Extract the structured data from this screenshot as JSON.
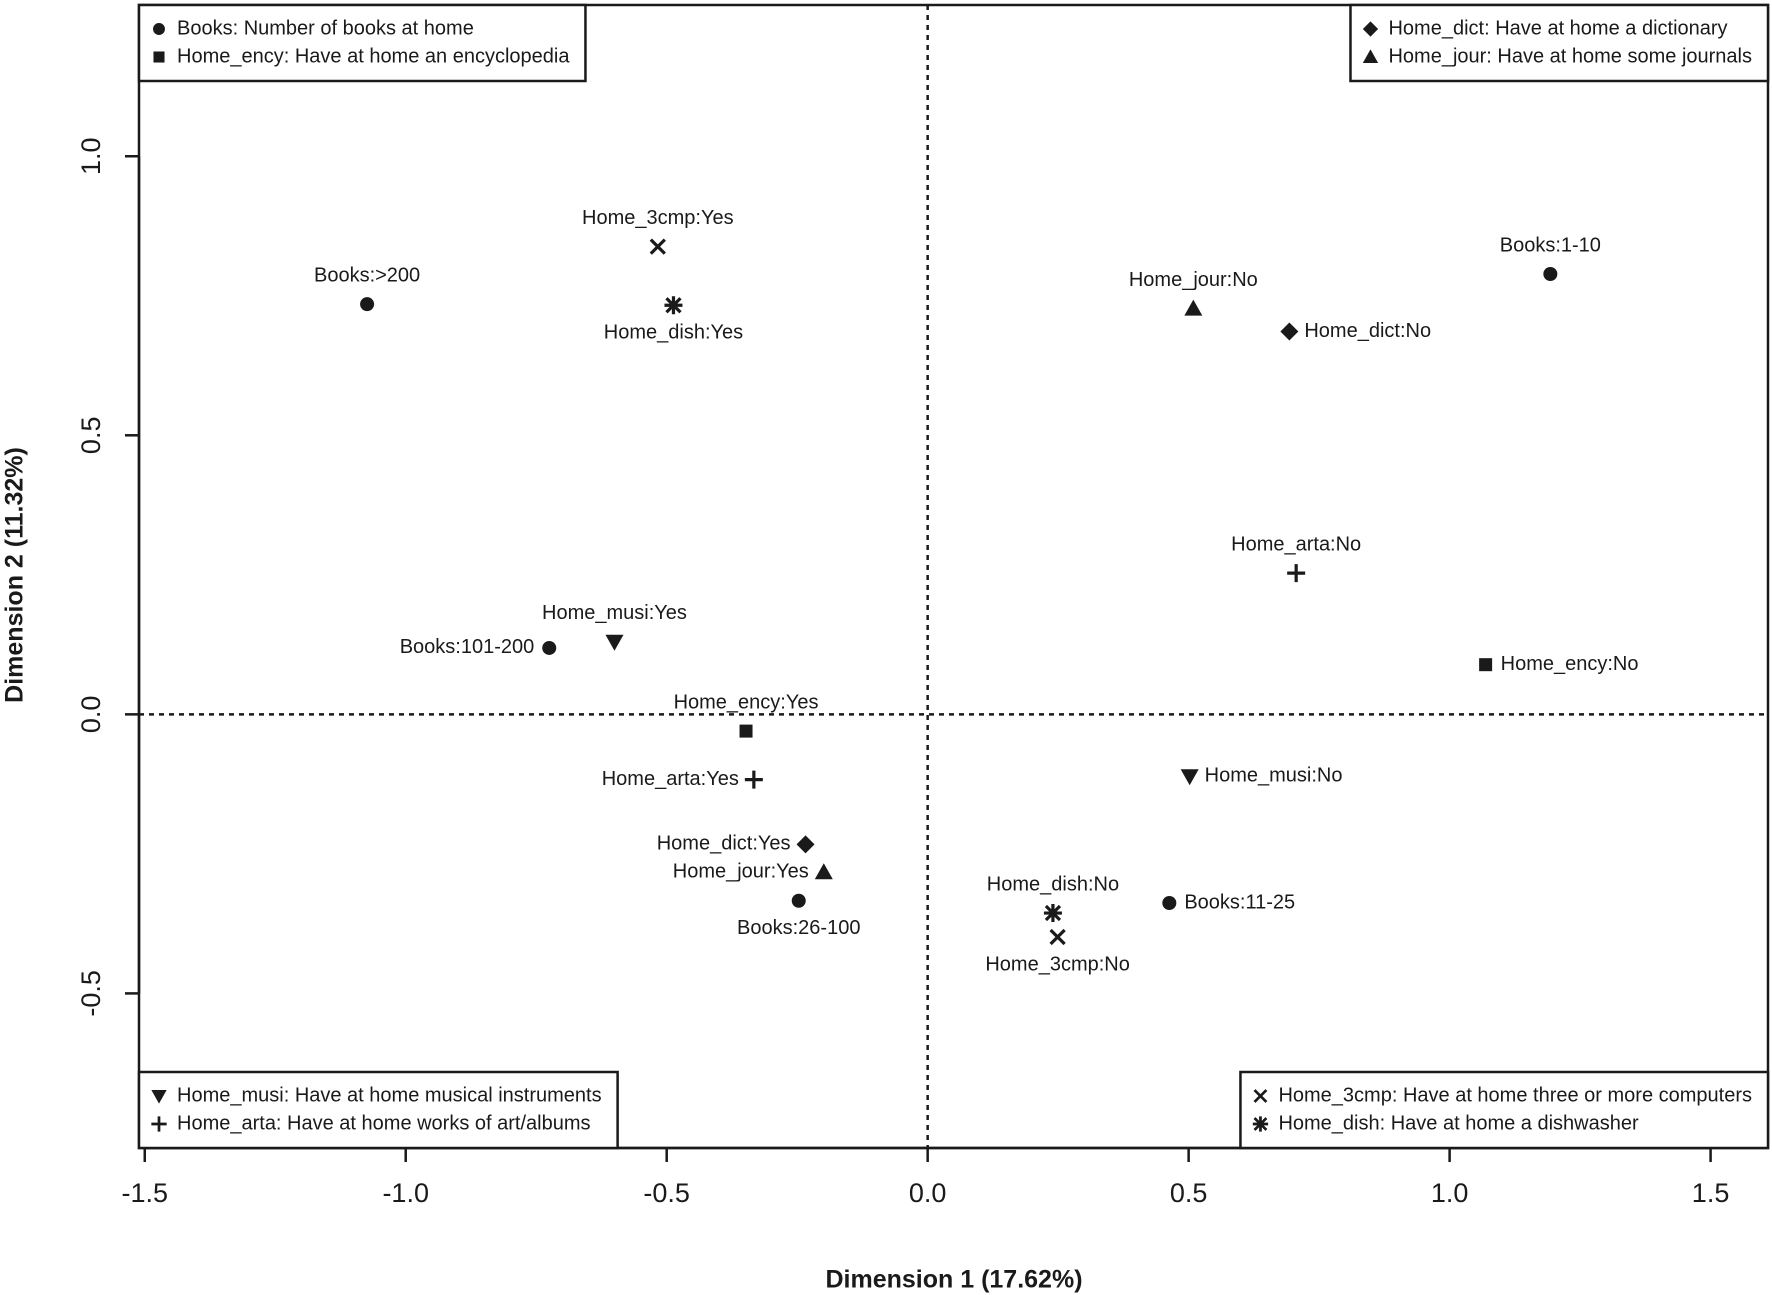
{
  "chart_data": {
    "type": "scatter",
    "xlabel": "Dimension 1 (17.62%)",
    "ylabel": "Dimension 2 (11.32%)",
    "xlim": [
      -1.511,
      1.61
    ],
    "ylim": [
      -0.777,
      1.271
    ],
    "xticks": [
      -1.5,
      {
        "value": -1.0,
        "label": "-1.0"
      },
      -0.5,
      {
        "value": 0.0,
        "label": "0.0"
      },
      0.5,
      {
        "value": 1.0,
        "label": "1.0"
      },
      1.5
    ],
    "yticks": [
      -0.5,
      {
        "value": 0.0,
        "label": "0.0"
      },
      0.5,
      {
        "value": 1.0,
        "label": "1.0"
      }
    ],
    "color": "#1a1a1a",
    "series": [
      {
        "name": "Books: Number of books at home",
        "marker": "circle",
        "legend": "top-left",
        "labels": [
          "Books:>200",
          "Books:101-200",
          "Books:26-100",
          "Books:1-10",
          "Books:11-25"
        ],
        "x": [
          -1.074,
          -0.725,
          -0.247,
          1.193,
          0.463
        ],
        "values": [
          0.735,
          0.119,
          -0.334,
          0.789,
          -0.338
        ]
      },
      {
        "name": "Home_ency: Have at home an encyclopedia",
        "marker": "square",
        "legend": "top-left",
        "labels": [
          "Home_ency:Yes",
          "Home_ency:No"
        ],
        "x": [
          -0.348,
          1.069
        ],
        "values": [
          -0.03,
          0.089
        ]
      },
      {
        "name": "Home_dict: Have at home a dictionary",
        "marker": "diamond",
        "legend": "top-right",
        "labels": [
          "Home_dict:Yes",
          "Home_dict:No"
        ],
        "x": [
          -0.234,
          0.693
        ],
        "values": [
          -0.233,
          0.686
        ]
      },
      {
        "name": "Home_jour: Have at home some journals",
        "marker": "triangle",
        "legend": "top-right",
        "labels": [
          "Home_jour:Yes",
          "Home_jour:No"
        ],
        "x": [
          -0.199,
          0.509
        ],
        "values": [
          -0.283,
          0.727
        ]
      },
      {
        "name": "Home_musi: Have at home musical instruments",
        "marker": "triangle-down",
        "legend": "bottom-left",
        "labels": [
          "Home_musi:Yes",
          "Home_musi:No"
        ],
        "x": [
          -0.6,
          0.502
        ],
        "values": [
          0.13,
          -0.111
        ]
      },
      {
        "name": "Home_arta: Have at home works of art/albums",
        "marker": "plus",
        "legend": "bottom-left",
        "labels": [
          "Home_arta:Yes",
          "Home_arta:No"
        ],
        "x": [
          -0.333,
          0.706
        ],
        "values": [
          -0.117,
          0.253
        ]
      },
      {
        "name": "Home_3cmp: Have at home three or more computers",
        "marker": "cross",
        "legend": "bottom-right",
        "labels": [
          "Home_3cmp:Yes",
          "Home_3cmp:No"
        ],
        "x": [
          -0.517,
          0.249
        ],
        "values": [
          0.838,
          -0.399
        ]
      },
      {
        "name": "Home_dish: Have at home a dishwasher",
        "marker": "asterisk",
        "legend": "bottom-right",
        "labels": [
          "Home_dish:Yes",
          "Home_dish:No"
        ],
        "x": [
          -0.487,
          0.24
        ],
        "values": [
          0.733,
          -0.356
        ]
      }
    ]
  }
}
